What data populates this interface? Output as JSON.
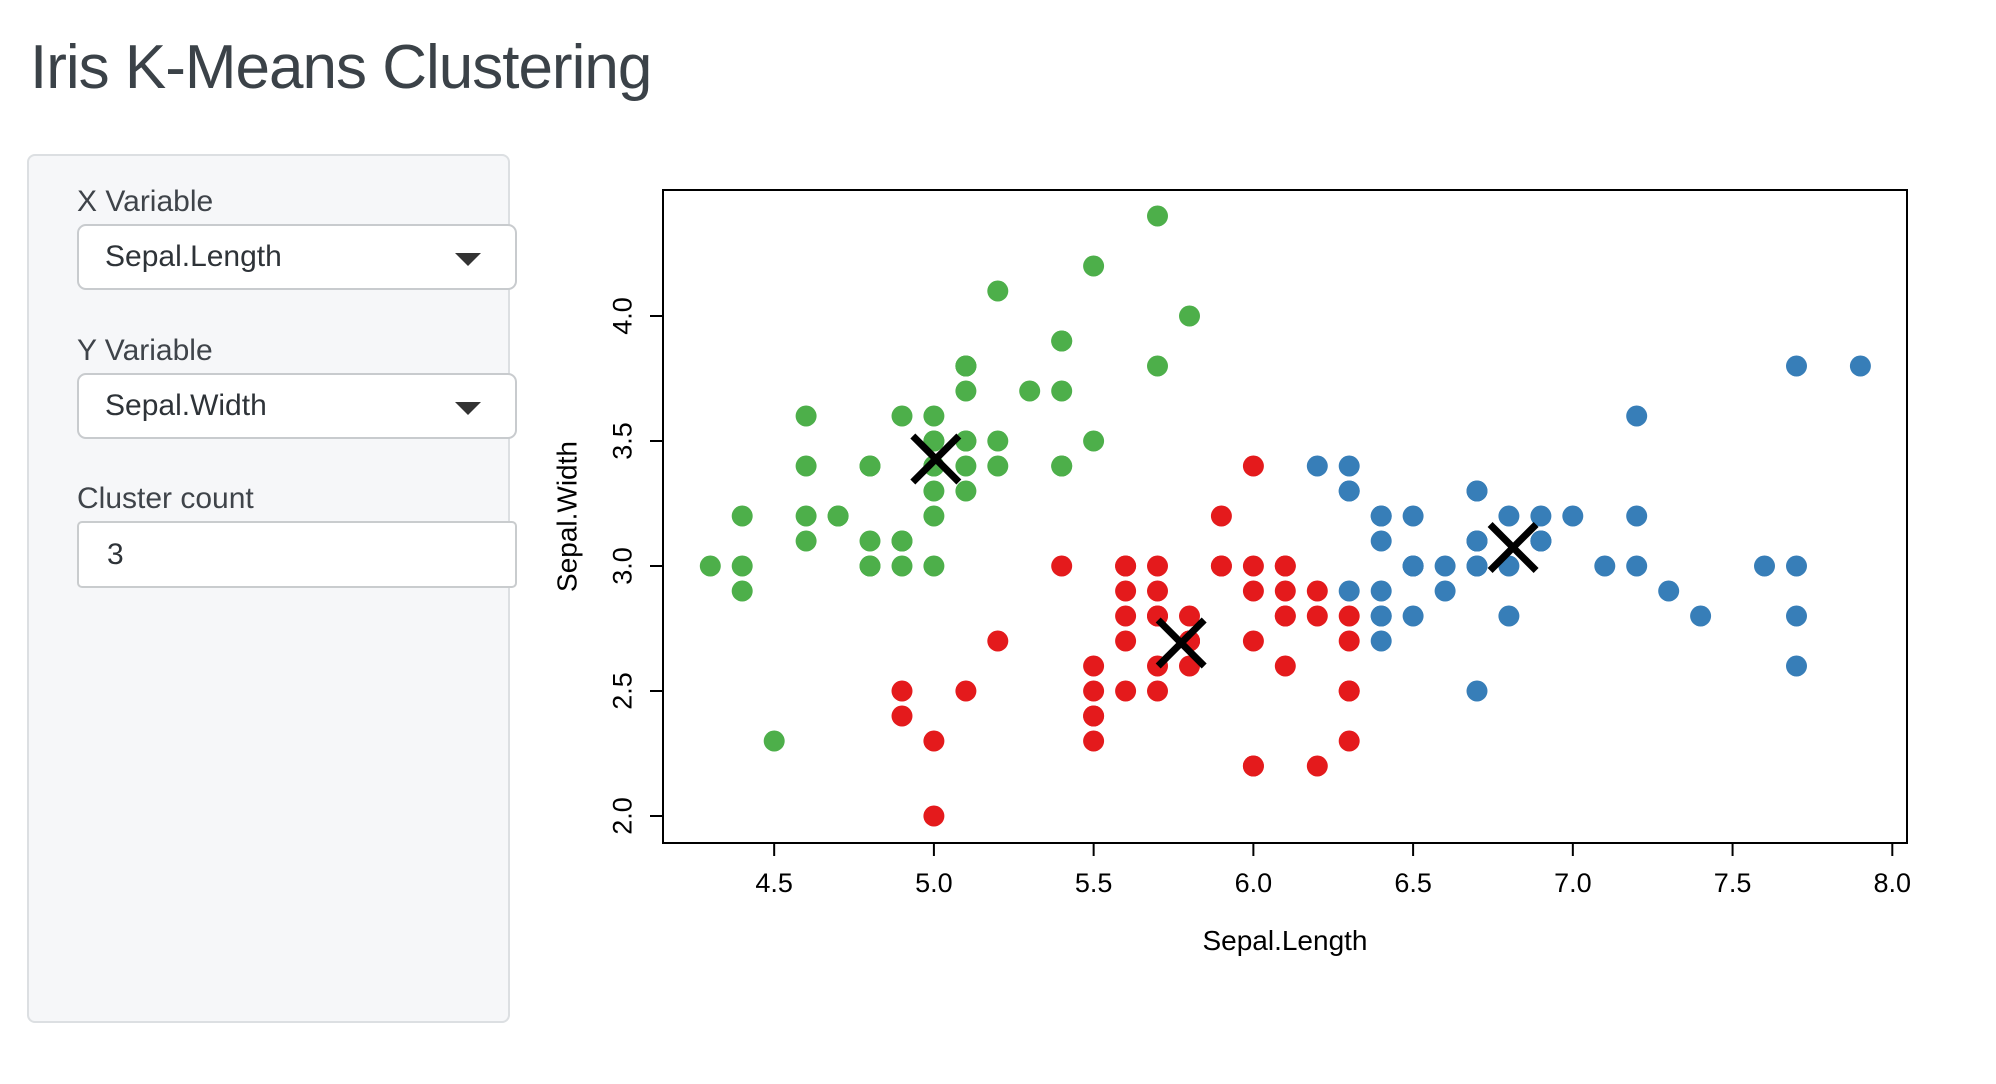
{
  "page": {
    "title": "Iris K-Means Clustering"
  },
  "sidebar": {
    "x_variable": {
      "label": "X Variable",
      "value": "Sepal.Length"
    },
    "y_variable": {
      "label": "Y Variable",
      "value": "Sepal.Width"
    },
    "cluster_count": {
      "label": "Cluster count",
      "value": "3"
    }
  },
  "chart_data": {
    "type": "scatter",
    "title": "",
    "xlabel": "Sepal.Length",
    "ylabel": "Sepal.Width",
    "xlim": [
      4.152,
      8.046
    ],
    "ylim": [
      1.892,
      4.504
    ],
    "x_ticks": [
      4.5,
      5.0,
      5.5,
      6.0,
      6.5,
      7.0,
      7.5,
      8.0
    ],
    "y_ticks": [
      2.0,
      2.5,
      3.0,
      3.5,
      4.0
    ],
    "grid": false,
    "legend": "none",
    "clusters": [
      {
        "id": 1,
        "color": "#E41A1C"
      },
      {
        "id": 2,
        "color": "#377EB8"
      },
      {
        "id": 3,
        "color": "#4DAF4A"
      }
    ],
    "center_color": "#000000",
    "points": [
      [
        5.1,
        3.5,
        3
      ],
      [
        4.9,
        3.0,
        3
      ],
      [
        4.7,
        3.2,
        3
      ],
      [
        4.6,
        3.1,
        3
      ],
      [
        5.0,
        3.6,
        3
      ],
      [
        5.4,
        3.9,
        3
      ],
      [
        4.6,
        3.4,
        3
      ],
      [
        5.0,
        3.4,
        3
      ],
      [
        4.4,
        2.9,
        3
      ],
      [
        4.9,
        3.1,
        3
      ],
      [
        5.4,
        3.7,
        3
      ],
      [
        4.8,
        3.4,
        3
      ],
      [
        4.8,
        3.0,
        3
      ],
      [
        4.3,
        3.0,
        3
      ],
      [
        5.8,
        4.0,
        3
      ],
      [
        5.7,
        4.4,
        3
      ],
      [
        5.4,
        3.9,
        3
      ],
      [
        5.1,
        3.5,
        3
      ],
      [
        5.7,
        3.8,
        3
      ],
      [
        5.1,
        3.8,
        3
      ],
      [
        5.4,
        3.4,
        3
      ],
      [
        5.1,
        3.7,
        3
      ],
      [
        4.6,
        3.6,
        3
      ],
      [
        5.1,
        3.3,
        3
      ],
      [
        4.8,
        3.4,
        3
      ],
      [
        5.0,
        3.0,
        3
      ],
      [
        5.0,
        3.4,
        3
      ],
      [
        5.2,
        3.5,
        3
      ],
      [
        5.2,
        3.4,
        3
      ],
      [
        4.7,
        3.2,
        3
      ],
      [
        4.8,
        3.1,
        3
      ],
      [
        5.4,
        3.4,
        3
      ],
      [
        5.2,
        4.1,
        3
      ],
      [
        5.5,
        4.2,
        3
      ],
      [
        4.9,
        3.1,
        3
      ],
      [
        5.0,
        3.2,
        3
      ],
      [
        5.5,
        3.5,
        3
      ],
      [
        4.9,
        3.6,
        3
      ],
      [
        4.4,
        3.0,
        3
      ],
      [
        5.1,
        3.4,
        3
      ],
      [
        5.0,
        3.5,
        3
      ],
      [
        4.5,
        2.3,
        3
      ],
      [
        4.4,
        3.2,
        3
      ],
      [
        5.0,
        3.5,
        3
      ],
      [
        5.1,
        3.8,
        3
      ],
      [
        4.8,
        3.0,
        3
      ],
      [
        5.1,
        3.8,
        3
      ],
      [
        4.6,
        3.2,
        3
      ],
      [
        5.3,
        3.7,
        3
      ],
      [
        5.0,
        3.3,
        3
      ],
      [
        7.0,
        3.2,
        2
      ],
      [
        6.4,
        3.2,
        2
      ],
      [
        6.9,
        3.1,
        2
      ],
      [
        5.5,
        2.3,
        1
      ],
      [
        6.5,
        2.8,
        2
      ],
      [
        5.7,
        2.8,
        1
      ],
      [
        6.3,
        3.3,
        2
      ],
      [
        4.9,
        2.4,
        1
      ],
      [
        6.6,
        2.9,
        2
      ],
      [
        5.2,
        2.7,
        1
      ],
      [
        5.0,
        2.0,
        1
      ],
      [
        5.9,
        3.0,
        1
      ],
      [
        6.0,
        2.2,
        1
      ],
      [
        6.1,
        2.9,
        1
      ],
      [
        5.6,
        2.9,
        1
      ],
      [
        6.7,
        3.1,
        2
      ],
      [
        5.6,
        3.0,
        1
      ],
      [
        5.8,
        2.7,
        1
      ],
      [
        6.2,
        2.2,
        1
      ],
      [
        5.6,
        2.5,
        1
      ],
      [
        5.9,
        3.2,
        1
      ],
      [
        6.1,
        2.8,
        1
      ],
      [
        6.3,
        2.5,
        1
      ],
      [
        6.1,
        2.8,
        1
      ],
      [
        6.4,
        2.9,
        2
      ],
      [
        6.6,
        3.0,
        2
      ],
      [
        6.8,
        2.8,
        2
      ],
      [
        6.7,
        3.0,
        2
      ],
      [
        6.0,
        2.9,
        1
      ],
      [
        5.7,
        2.6,
        1
      ],
      [
        5.5,
        2.4,
        1
      ],
      [
        5.5,
        2.4,
        1
      ],
      [
        5.8,
        2.7,
        1
      ],
      [
        6.0,
        2.7,
        1
      ],
      [
        5.4,
        3.0,
        1
      ],
      [
        6.0,
        3.4,
        1
      ],
      [
        6.7,
        3.1,
        2
      ],
      [
        6.3,
        2.3,
        1
      ],
      [
        5.6,
        3.0,
        1
      ],
      [
        5.5,
        2.5,
        1
      ],
      [
        5.5,
        2.6,
        1
      ],
      [
        6.1,
        3.0,
        1
      ],
      [
        5.8,
        2.6,
        1
      ],
      [
        5.0,
        2.3,
        1
      ],
      [
        5.6,
        2.7,
        1
      ],
      [
        5.7,
        3.0,
        1
      ],
      [
        5.7,
        2.9,
        1
      ],
      [
        6.2,
        2.9,
        1
      ],
      [
        5.1,
        2.5,
        1
      ],
      [
        5.7,
        2.8,
        1
      ],
      [
        6.3,
        3.3,
        2
      ],
      [
        5.8,
        2.7,
        1
      ],
      [
        7.1,
        3.0,
        2
      ],
      [
        6.3,
        2.9,
        2
      ],
      [
        6.5,
        3.0,
        2
      ],
      [
        7.6,
        3.0,
        2
      ],
      [
        4.9,
        2.5,
        1
      ],
      [
        7.3,
        2.9,
        2
      ],
      [
        6.7,
        2.5,
        2
      ],
      [
        7.2,
        3.6,
        2
      ],
      [
        6.5,
        3.2,
        2
      ],
      [
        6.4,
        2.7,
        2
      ],
      [
        6.8,
        3.0,
        2
      ],
      [
        5.7,
        2.5,
        1
      ],
      [
        5.8,
        2.8,
        1
      ],
      [
        6.4,
        3.2,
        2
      ],
      [
        6.5,
        3.0,
        2
      ],
      [
        7.7,
        3.8,
        2
      ],
      [
        7.7,
        2.6,
        2
      ],
      [
        6.0,
        2.2,
        1
      ],
      [
        6.9,
        3.2,
        2
      ],
      [
        5.6,
        2.8,
        1
      ],
      [
        7.7,
        2.8,
        2
      ],
      [
        6.3,
        2.7,
        1
      ],
      [
        6.7,
        3.3,
        2
      ],
      [
        7.2,
        3.2,
        2
      ],
      [
        6.2,
        2.8,
        1
      ],
      [
        6.1,
        3.0,
        1
      ],
      [
        6.4,
        2.8,
        2
      ],
      [
        7.2,
        3.0,
        2
      ],
      [
        7.4,
        2.8,
        2
      ],
      [
        7.9,
        3.8,
        2
      ],
      [
        6.4,
        2.8,
        2
      ],
      [
        6.3,
        2.8,
        1
      ],
      [
        6.1,
        2.6,
        1
      ],
      [
        7.7,
        3.0,
        2
      ],
      [
        6.3,
        3.4,
        2
      ],
      [
        6.4,
        3.1,
        2
      ],
      [
        6.0,
        3.0,
        1
      ],
      [
        6.9,
        3.1,
        2
      ],
      [
        6.7,
        3.1,
        2
      ],
      [
        6.9,
        3.1,
        2
      ],
      [
        5.8,
        2.7,
        1
      ],
      [
        6.8,
        3.2,
        2
      ],
      [
        6.7,
        3.3,
        2
      ],
      [
        6.7,
        3.0,
        2
      ],
      [
        6.3,
        2.5,
        1
      ],
      [
        6.5,
        3.0,
        2
      ],
      [
        6.2,
        3.4,
        2
      ],
      [
        5.9,
        3.0,
        1
      ]
    ],
    "centers": [
      [
        5.774,
        2.692
      ],
      [
        6.813,
        3.074
      ],
      [
        5.006,
        3.428
      ]
    ]
  }
}
